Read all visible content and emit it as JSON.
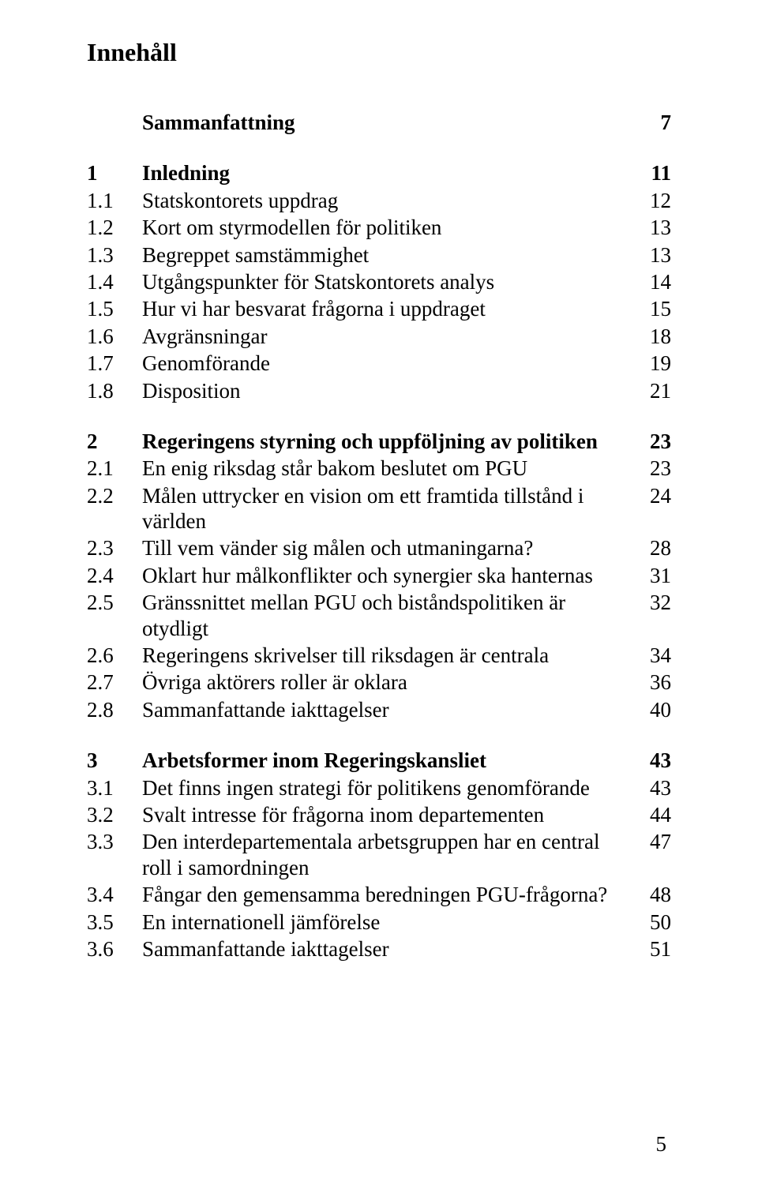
{
  "page": {
    "title": "Innehåll",
    "number": "5"
  },
  "toc": [
    {
      "kind": "row",
      "bold": true,
      "num": "",
      "label": "Sammanfattning",
      "page": "7"
    },
    {
      "kind": "gap"
    },
    {
      "kind": "row",
      "bold": true,
      "num": "1",
      "label": "Inledning",
      "page": "11"
    },
    {
      "kind": "row",
      "bold": false,
      "num": "1.1",
      "label": "Statskontorets uppdrag",
      "page": "12"
    },
    {
      "kind": "row",
      "bold": false,
      "num": "1.2",
      "label": "Kort om styrmodellen för politiken",
      "page": "13"
    },
    {
      "kind": "row",
      "bold": false,
      "num": "1.3",
      "label": "Begreppet samstämmighet",
      "page": "13"
    },
    {
      "kind": "row",
      "bold": false,
      "num": "1.4",
      "label": "Utgångspunkter för Statskontorets analys",
      "page": "14"
    },
    {
      "kind": "row",
      "bold": false,
      "num": "1.5",
      "label": "Hur vi har besvarat frågorna i uppdraget",
      "page": "15"
    },
    {
      "kind": "row",
      "bold": false,
      "num": "1.6",
      "label": "Avgränsningar",
      "page": "18"
    },
    {
      "kind": "row",
      "bold": false,
      "num": "1.7",
      "label": "Genomförande",
      "page": "19"
    },
    {
      "kind": "row",
      "bold": false,
      "num": "1.8",
      "label": "Disposition",
      "page": "21"
    },
    {
      "kind": "gap"
    },
    {
      "kind": "row",
      "bold": true,
      "num": "2",
      "label": "Regeringens styrning och uppföljning av politiken",
      "page": "23"
    },
    {
      "kind": "row",
      "bold": false,
      "num": "2.1",
      "label": "En enig riksdag står bakom beslutet om PGU",
      "page": "23"
    },
    {
      "kind": "row",
      "bold": false,
      "num": "2.2",
      "label": "Målen uttrycker en vision om ett framtida tillstånd i världen",
      "page": "24"
    },
    {
      "kind": "row",
      "bold": false,
      "num": "2.3",
      "label": "Till vem vänder sig målen och utmaningarna?",
      "page": "28"
    },
    {
      "kind": "row",
      "bold": false,
      "num": "2.4",
      "label": "Oklart hur målkonflikter och synergier ska hanternas",
      "page": "31"
    },
    {
      "kind": "row",
      "bold": false,
      "num": "2.5",
      "label": "Gränssnittet mellan PGU och biståndspolitiken är otydligt",
      "page": "32"
    },
    {
      "kind": "row",
      "bold": false,
      "num": "2.6",
      "label": "Regeringens skrivelser till riksdagen är centrala",
      "page": "34"
    },
    {
      "kind": "row",
      "bold": false,
      "num": "2.7",
      "label": "Övriga aktörers roller är oklara",
      "page": "36"
    },
    {
      "kind": "row",
      "bold": false,
      "num": "2.8",
      "label": "Sammanfattande iakttagelser",
      "page": "40"
    },
    {
      "kind": "gap"
    },
    {
      "kind": "row",
      "bold": true,
      "num": "3",
      "label": "Arbetsformer inom Regeringskansliet",
      "page": "43"
    },
    {
      "kind": "row",
      "bold": false,
      "num": "3.1",
      "label": "Det finns ingen strategi för politikens genomförande",
      "page": "43"
    },
    {
      "kind": "row",
      "bold": false,
      "num": "3.2",
      "label": "Svalt intresse för frågorna inom departementen",
      "page": "44"
    },
    {
      "kind": "row",
      "bold": false,
      "num": "3.3",
      "label": "Den interdepartementala arbetsgruppen har en central roll i samordningen",
      "page": "47"
    },
    {
      "kind": "row",
      "bold": false,
      "num": "3.4",
      "label": "Fångar den gemensamma beredningen PGU-frågorna?",
      "page": "48"
    },
    {
      "kind": "row",
      "bold": false,
      "num": "3.5",
      "label": "En internationell jämförelse",
      "page": "50"
    },
    {
      "kind": "row",
      "bold": false,
      "num": "3.6",
      "label": "Sammanfattande iakttagelser",
      "page": "51"
    }
  ]
}
